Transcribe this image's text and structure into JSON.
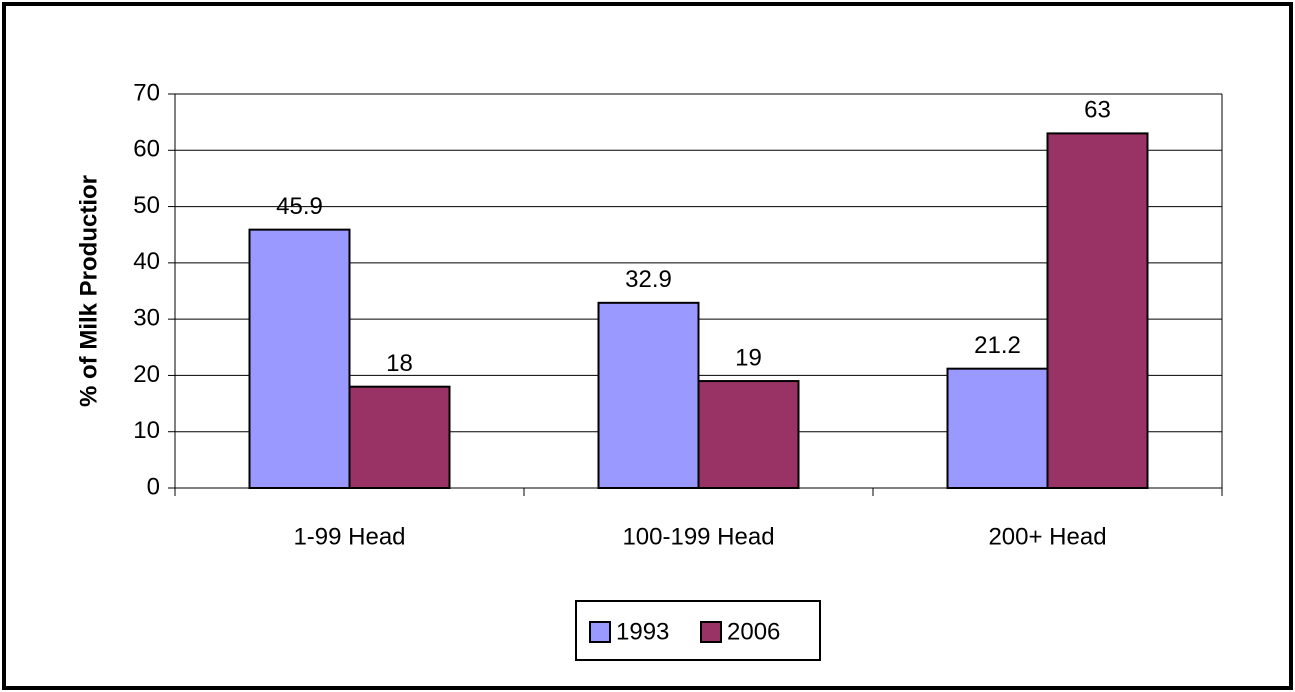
{
  "chart_data": {
    "type": "bar",
    "y_label": "% of Milk Productior",
    "categories": [
      "1-99 Head",
      "100-199 Head",
      "200+ Head"
    ],
    "series": [
      {
        "name": "1993",
        "color": "#9999ff",
        "values": [
          45.9,
          32.9,
          21.2
        ]
      },
      {
        "name": "2006",
        "color": "#993366",
        "values": [
          18,
          19,
          63
        ]
      }
    ],
    "ylim": [
      0,
      70
    ],
    "yticks": [
      0,
      10,
      20,
      30,
      40,
      50,
      60,
      70
    ],
    "grid": true,
    "legend": "bottom"
  }
}
